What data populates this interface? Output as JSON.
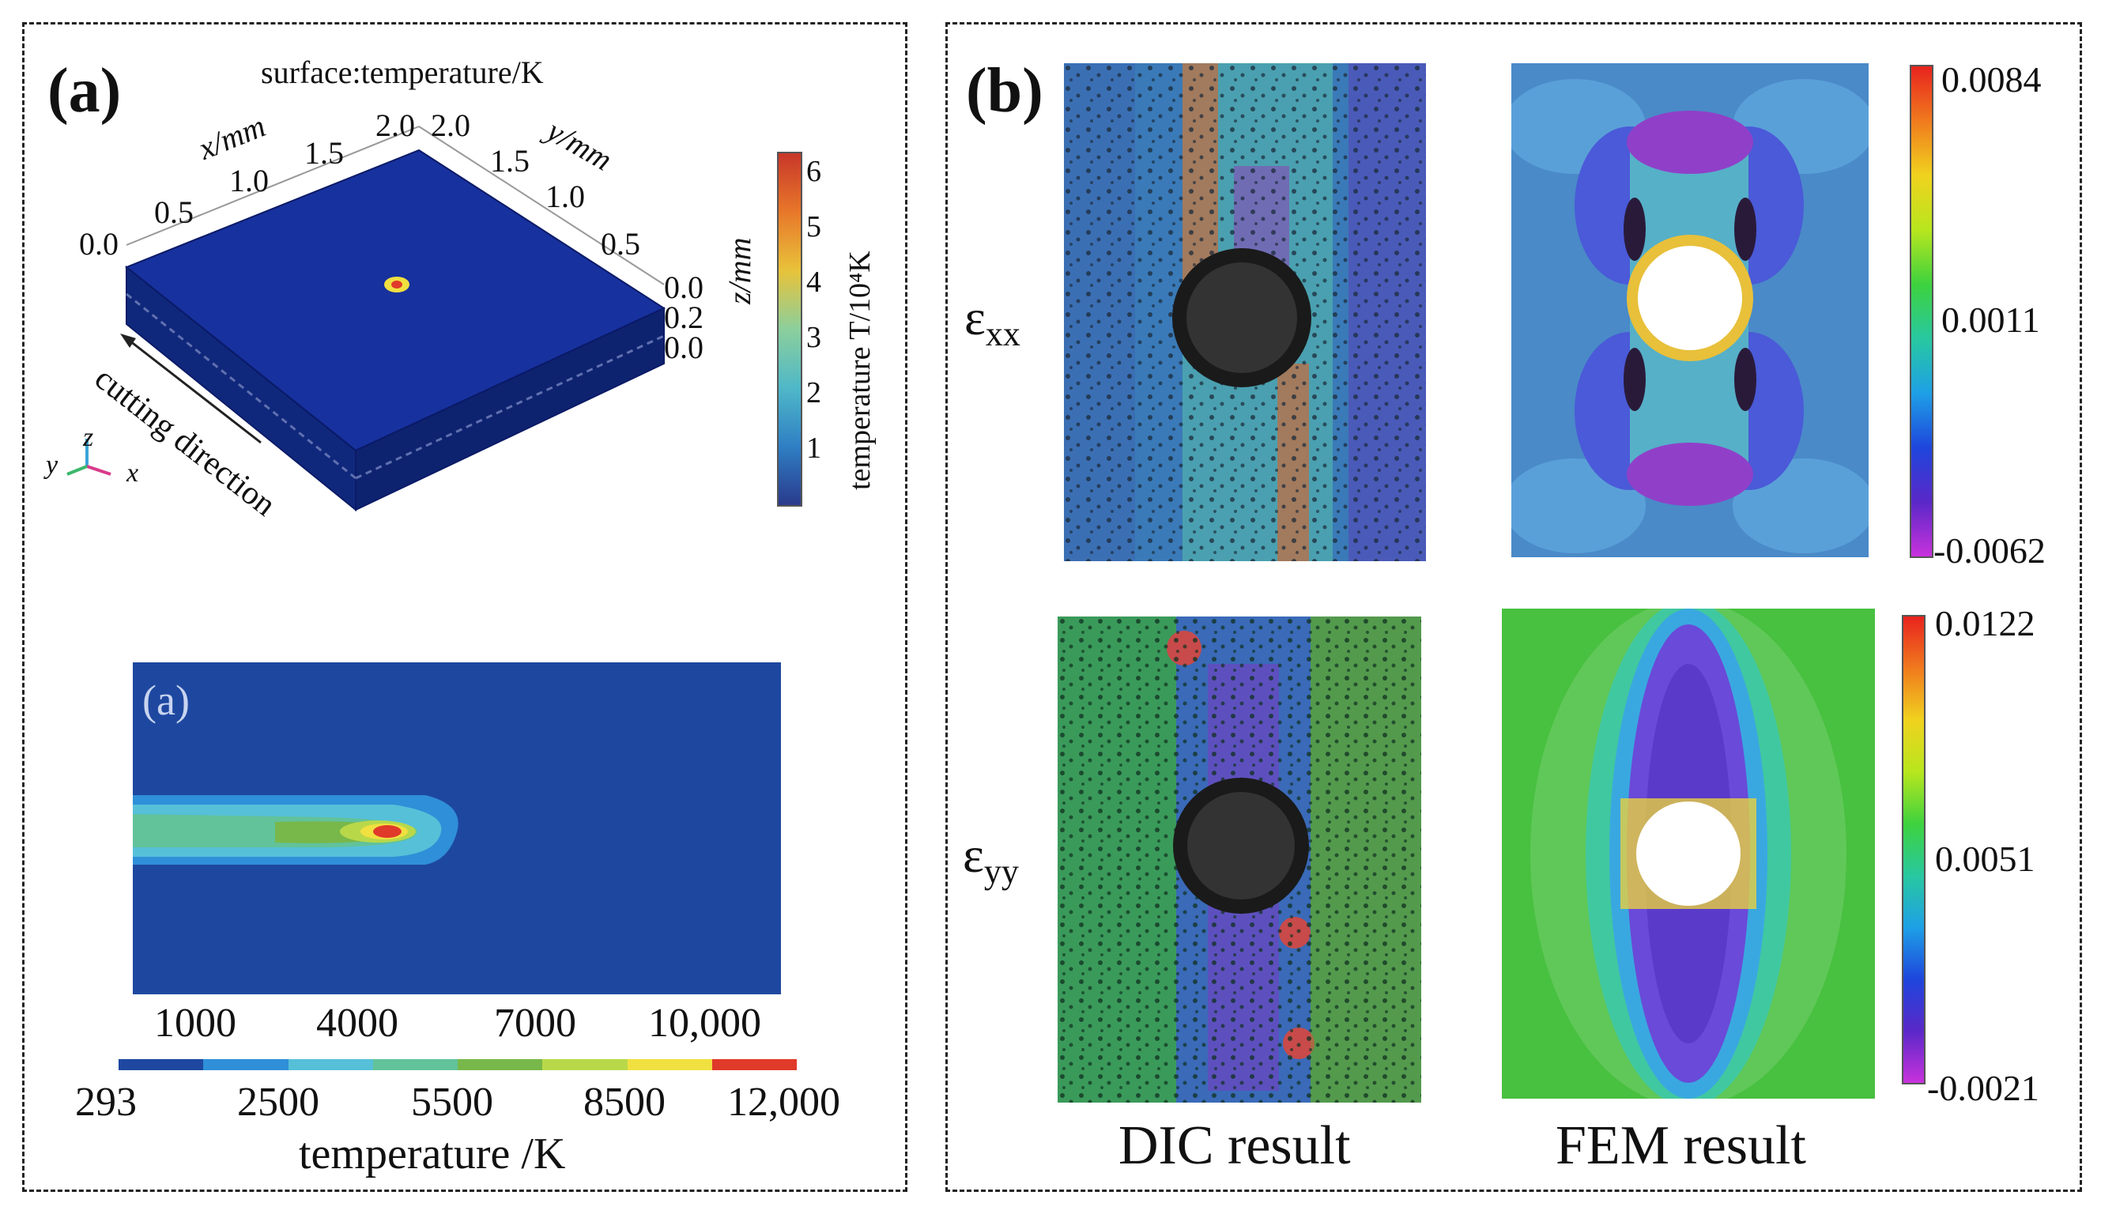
{
  "panel_a": {
    "label": "(a)",
    "plot3d": {
      "title": "surface:temperature/K",
      "x_axis_label": "x/mm",
      "x_ticks": [
        "0.0",
        "0.5",
        "1.0",
        "1.5",
        "2.0"
      ],
      "y_axis_label": "y/mm",
      "y_ticks": [
        "2.0",
        "1.5",
        "1.0",
        "0.5"
      ],
      "z_axis_label": "z/mm",
      "z_ticks": [
        "0.0",
        "0.2",
        "0.0"
      ],
      "cutting_label": "cutting direction",
      "triad": {
        "x": "x",
        "y": "y",
        "z": "z"
      },
      "colorbar": {
        "label": "temperature T/10⁴K",
        "ticks": [
          "6",
          "5",
          "4",
          "3",
          "2",
          "1"
        ],
        "colors": [
          "#2a3a8c",
          "#2f7fc4",
          "#4fb8c8",
          "#8ccf9c",
          "#e8c33a",
          "#e8772a",
          "#c8372a"
        ]
      }
    },
    "contour": {
      "inset_label": "(a)",
      "scale_ticks": [
        "1000",
        "4000",
        "7000",
        "10,000"
      ],
      "legend_ticks": [
        "293",
        "2500",
        "5500",
        "8500",
        "12,000"
      ],
      "legend_colors": [
        "#1e48a0",
        "#2f8fd8",
        "#56c0d8",
        "#62c29a",
        "#78b84a",
        "#b8d84a",
        "#f0e040",
        "#e03a2a"
      ],
      "legend_label": "temperature /K"
    }
  },
  "panel_b": {
    "label": "(b)",
    "rows": [
      {
        "symbol": "ε",
        "subscript": "xx",
        "colorbar_ticks": [
          "0.0084",
          "0.0011",
          "-0.0062"
        ]
      },
      {
        "symbol": "ε",
        "subscript": "yy",
        "colorbar_ticks": [
          "0.0122",
          "0.0051",
          "-0.0021"
        ]
      }
    ],
    "columns": [
      "DIC result",
      "FEM result"
    ],
    "colorbar_colors": [
      "#e8231e",
      "#f07a1e",
      "#f0d21e",
      "#b8e61e",
      "#3ed23e",
      "#28c8a0",
      "#1ea0e6",
      "#1e46dc",
      "#5a28c8",
      "#c832dc"
    ]
  }
}
